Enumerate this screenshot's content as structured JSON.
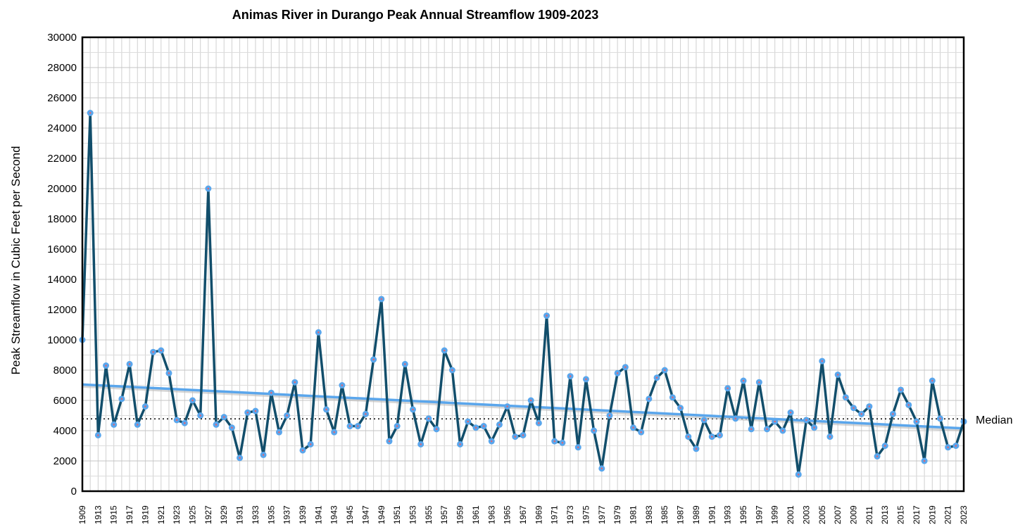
{
  "chart_data": {
    "type": "line",
    "title": "Animas River in Durango Peak Annual Streamflow 1909-2023",
    "xlabel": "",
    "ylabel": "Peak Streamflow in Cubic Feet per Second",
    "ylim": [
      0,
      30000
    ],
    "yticks": [
      0,
      2000,
      4000,
      6000,
      8000,
      10000,
      12000,
      14000,
      16000,
      18000,
      20000,
      22000,
      24000,
      26000,
      28000,
      30000
    ],
    "grid": true,
    "categories": [
      1909,
      1911,
      1913,
      1914,
      1915,
      1916,
      1917,
      1918,
      1919,
      1920,
      1921,
      1922,
      1923,
      1924,
      1925,
      1926,
      1927,
      1928,
      1929,
      1930,
      1931,
      1932,
      1933,
      1934,
      1935,
      1936,
      1937,
      1938,
      1939,
      1940,
      1941,
      1942,
      1943,
      1944,
      1945,
      1946,
      1947,
      1948,
      1949,
      1950,
      1951,
      1952,
      1953,
      1954,
      1955,
      1956,
      1957,
      1958,
      1959,
      1960,
      1961,
      1962,
      1963,
      1964,
      1965,
      1966,
      1967,
      1968,
      1969,
      1970,
      1971,
      1972,
      1973,
      1974,
      1975,
      1976,
      1977,
      1978,
      1979,
      1980,
      1981,
      1982,
      1983,
      1984,
      1985,
      1986,
      1987,
      1988,
      1989,
      1990,
      1991,
      1992,
      1993,
      1994,
      1995,
      1996,
      1997,
      1998,
      1999,
      2000,
      2001,
      2002,
      2003,
      2004,
      2005,
      2006,
      2007,
      2008,
      2009,
      2010,
      2011,
      2012,
      2013,
      2014,
      2015,
      2016,
      2017,
      2018,
      2019,
      2020,
      2021,
      2022,
      2023
    ],
    "tick_labels": [
      "1909",
      "1913",
      "1915",
      "1917",
      "1919",
      "1921",
      "1923",
      "1925",
      "1927",
      "1929",
      "1931",
      "1933",
      "1935",
      "1937",
      "1939",
      "1941",
      "1943",
      "1945",
      "1947",
      "1949",
      "1951",
      "1953",
      "1955",
      "1957",
      "1959",
      "1961",
      "1963",
      "1965",
      "1967",
      "1969",
      "1971",
      "1973",
      "1975",
      "1977",
      "1979",
      "1981",
      "1983",
      "1985",
      "1987",
      "1989",
      "1991",
      "1993",
      "1995",
      "1997",
      "1999",
      "2001",
      "2003",
      "2005",
      "2007",
      "2009",
      "2011",
      "2013",
      "2015",
      "2017",
      "2019",
      "2021",
      "2023"
    ],
    "series": [
      {
        "values": [
          10000,
          25000,
          3700,
          8300,
          4400,
          6100,
          8400,
          4400,
          5600,
          9200,
          9300,
          7800,
          4700,
          4500,
          6000,
          5000,
          20000,
          4400,
          4900,
          4200,
          2200,
          5200,
          5300,
          2400,
          6500,
          3900,
          5000,
          7200,
          2700,
          3100,
          10500,
          5400,
          3900,
          7000,
          4300,
          4300,
          5100,
          8700,
          12700,
          3300,
          4300,
          8400,
          5400,
          3100,
          4800,
          4100,
          9300,
          8000,
          3100,
          4600,
          4200,
          4300,
          3300,
          4400,
          5600,
          3600,
          3700,
          6000,
          4500,
          11600,
          3300,
          3200,
          7600,
          2900,
          7400,
          4000,
          1500,
          5000,
          7800,
          8200,
          4200,
          3900,
          6100,
          7500,
          8000,
          6200,
          5500,
          3600,
          2800,
          4700,
          3600,
          3700,
          6800,
          4800,
          7300,
          4100,
          7200,
          4100,
          4600,
          4000,
          5200,
          1100,
          4700,
          4200,
          8600,
          3600,
          7700,
          6200,
          5500,
          5100,
          5600,
          2300,
          3000,
          5100,
          6700,
          5700,
          4600,
          2000,
          7300,
          4800,
          2900,
          3000,
          4600
        ],
        "line_color": "#124e6b",
        "marker_color": "#5aa6ec"
      }
    ],
    "trendline": {
      "start": 7050,
      "end": 4150,
      "color": "#5aa6ec"
    },
    "median": {
      "label": "Median",
      "value": 4780,
      "style": "dotted"
    }
  }
}
